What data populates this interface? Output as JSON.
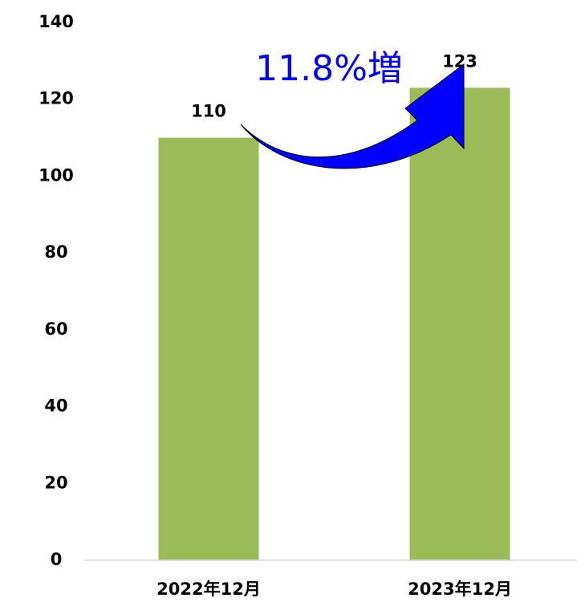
{
  "chart_data": {
    "type": "bar",
    "categories": [
      "2022年12月",
      "2023年12月"
    ],
    "values": [
      110,
      123
    ],
    "color": "#9bbb59",
    "ylim": [
      0,
      140
    ],
    "yticks": [
      0,
      20,
      40,
      60,
      80,
      100,
      120,
      140
    ],
    "grid": false,
    "annotation": "11.8%増",
    "annotation_color": "#0000ff"
  }
}
